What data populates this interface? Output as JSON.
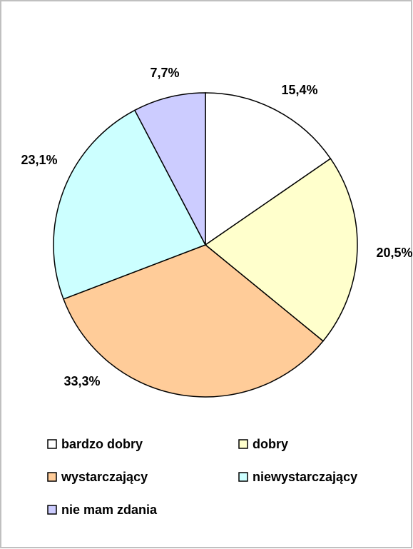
{
  "chart_data": {
    "type": "pie",
    "categories": [
      "bardzo dobry",
      "dobry",
      "wystarczający",
      "niewystarczający",
      "nie mam zdania"
    ],
    "values": [
      15.4,
      20.5,
      33.3,
      23.1,
      7.7
    ],
    "value_labels": [
      "15,4%",
      "20,5%",
      "33,3%",
      "23,1%",
      "7,7%"
    ],
    "colors": [
      "#FFFFFF",
      "#FFFFCC",
      "#FFCC99",
      "#CCFFFF",
      "#CCCCFF"
    ],
    "legend": "bottom"
  }
}
